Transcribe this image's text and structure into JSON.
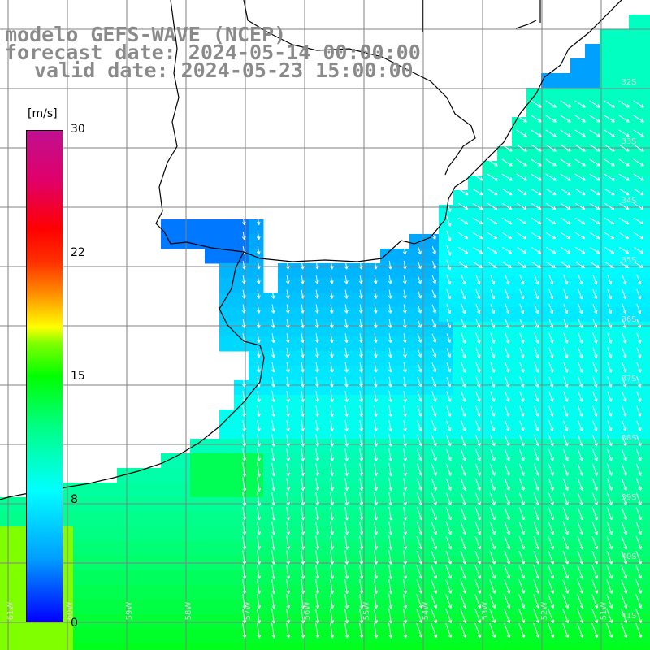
{
  "title": {
    "line1": "modelo GEFS-WAVE (NCEP)",
    "line2": "forecast date: 2024-05-14 00:00:00",
    "line3": "valid date: 2024-05-23 15:00:00"
  },
  "colorbar": {
    "unit": "[m/s]",
    "ticks": [
      "30",
      "22",
      "15",
      "8",
      "0"
    ],
    "range": [
      0,
      30
    ],
    "colors": [
      "#0000ff",
      "#00a0ff",
      "#00ffff",
      "#00ff80",
      "#00ff00",
      "#80ff00",
      "#ffff00",
      "#ff9000",
      "#ff0000",
      "#c01090"
    ]
  },
  "grid": {
    "lat_labels": [
      "32S",
      "33S",
      "34S",
      "35S",
      "36S",
      "37S",
      "38S",
      "39S",
      "40S",
      "41S"
    ],
    "lon_labels": [
      "61W",
      "60W",
      "59W",
      "58W",
      "57W",
      "56W",
      "55W",
      "54W",
      "53W",
      "52W",
      "51W"
    ]
  },
  "colors": {
    "land": "#ffffff",
    "grid": "#808080",
    "coast": "#000000",
    "arrow": "#ffffff",
    "title": "#8a8a8a"
  }
}
